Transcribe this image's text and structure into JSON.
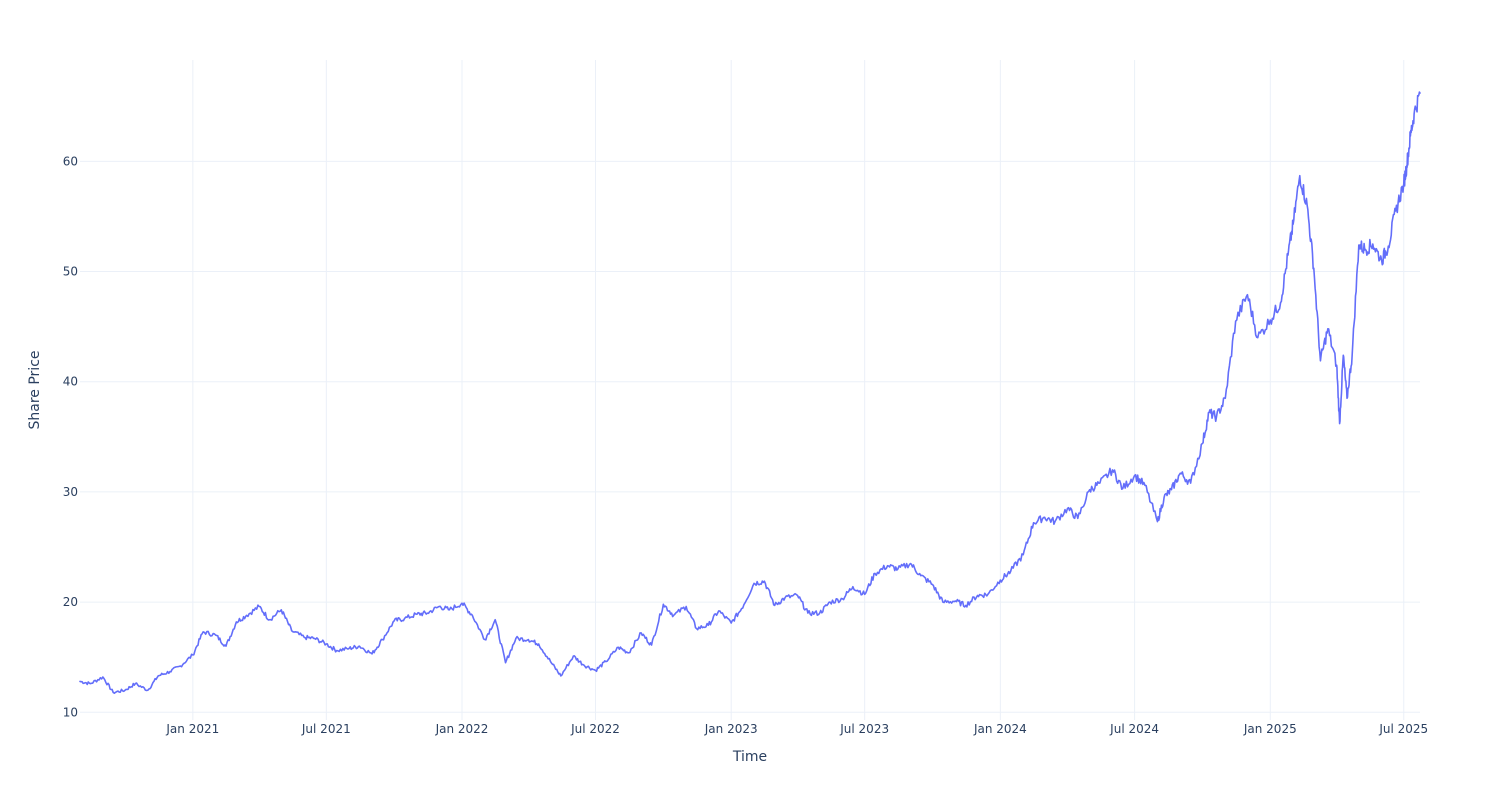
{
  "chart_data": {
    "type": "line",
    "title": "",
    "xlabel": "Time",
    "ylabel": "Share Price",
    "x_range": [
      "2020-08-01",
      "2025-07-23"
    ],
    "ylim": [
      9.3,
      69.2
    ],
    "y_ticks": [
      10,
      20,
      30,
      40,
      50,
      60
    ],
    "x_ticks": [
      {
        "date": "2021-01-01",
        "label": "Jan 2021"
      },
      {
        "date": "2021-07-01",
        "label": "Jul 2021"
      },
      {
        "date": "2022-01-01",
        "label": "Jan 2022"
      },
      {
        "date": "2022-07-01",
        "label": "Jul 2022"
      },
      {
        "date": "2023-01-01",
        "label": "Jan 2023"
      },
      {
        "date": "2023-07-01",
        "label": "Jul 2023"
      },
      {
        "date": "2024-01-01",
        "label": "Jan 2024"
      },
      {
        "date": "2024-07-01",
        "label": "Jul 2024"
      },
      {
        "date": "2025-01-01",
        "label": "Jan 2025"
      },
      {
        "date": "2025-07-01",
        "label": "Jul 2025"
      }
    ],
    "grid": true,
    "legend": "none",
    "colors": {
      "line": "#636efa",
      "grid": "#ebf0f8",
      "text": "#2a3f5f"
    },
    "series": [
      {
        "x": [
          "2020-08-01",
          "2020-08-15",
          "2020-09-01",
          "2020-09-15",
          "2020-10-01",
          "2020-10-15",
          "2020-11-01",
          "2020-11-15",
          "2020-12-01",
          "2020-12-15",
          "2021-01-01",
          "2021-01-15",
          "2021-02-01",
          "2021-02-15",
          "2021-03-01",
          "2021-03-15",
          "2021-04-01",
          "2021-04-15",
          "2021-05-01",
          "2021-05-15",
          "2021-06-01",
          "2021-06-15",
          "2021-07-01",
          "2021-07-15",
          "2021-08-01",
          "2021-08-15",
          "2021-09-01",
          "2021-09-15",
          "2021-10-01",
          "2021-10-15",
          "2021-11-01",
          "2021-11-15",
          "2021-12-01",
          "2021-12-15",
          "2022-01-01",
          "2022-01-15",
          "2022-02-01",
          "2022-02-15",
          "2022-03-01",
          "2022-03-15",
          "2022-04-01",
          "2022-04-15",
          "2022-05-01",
          "2022-05-15",
          "2022-06-01",
          "2022-06-15",
          "2022-07-01",
          "2022-07-15",
          "2022-08-01",
          "2022-08-15",
          "2022-09-01",
          "2022-09-15",
          "2022-10-01",
          "2022-10-15",
          "2022-11-01",
          "2022-11-15",
          "2022-12-01",
          "2022-12-15",
          "2023-01-01",
          "2023-01-15",
          "2023-02-01",
          "2023-02-15",
          "2023-03-01",
          "2023-03-15",
          "2023-04-01",
          "2023-04-15",
          "2023-05-01",
          "2023-05-15",
          "2023-06-01",
          "2023-06-15",
          "2023-07-01",
          "2023-07-15",
          "2023-08-01",
          "2023-08-15",
          "2023-09-01",
          "2023-09-15",
          "2023-10-01",
          "2023-10-15",
          "2023-11-01",
          "2023-11-15",
          "2023-12-01",
          "2023-12-15",
          "2024-01-01",
          "2024-01-15",
          "2024-02-01",
          "2024-02-15",
          "2024-03-01",
          "2024-03-15",
          "2024-04-01",
          "2024-04-15",
          "2024-05-01",
          "2024-05-15",
          "2024-06-01",
          "2024-06-15",
          "2024-07-01",
          "2024-07-15",
          "2024-08-01",
          "2024-08-10",
          "2024-08-20",
          "2024-09-01",
          "2024-09-15",
          "2024-10-01",
          "2024-10-10",
          "2024-10-20",
          "2024-11-01",
          "2024-11-15",
          "2024-12-01",
          "2024-12-15",
          "2025-01-01",
          "2025-01-15",
          "2025-01-25",
          "2025-02-01",
          "2025-02-10",
          "2025-02-20",
          "2025-03-01",
          "2025-03-10",
          "2025-03-20",
          "2025-04-01",
          "2025-04-05",
          "2025-04-10",
          "2025-04-15",
          "2025-04-22",
          "2025-05-01",
          "2025-05-10",
          "2025-05-20",
          "2025-06-01",
          "2025-06-10",
          "2025-06-20",
          "2025-07-01",
          "2025-07-05",
          "2025-07-10",
          "2025-07-15",
          "2025-07-23"
        ],
        "y": [
          12.8,
          12.6,
          13.2,
          11.8,
          12.0,
          12.6,
          12.0,
          13.3,
          13.7,
          14.2,
          15.2,
          17.3,
          17.0,
          16.0,
          18.2,
          18.8,
          19.6,
          18.4,
          19.3,
          17.4,
          16.8,
          16.7,
          16.2,
          15.6,
          15.8,
          16.0,
          15.3,
          16.6,
          18.3,
          18.5,
          18.9,
          19.0,
          19.6,
          19.3,
          19.9,
          18.8,
          16.6,
          18.4,
          14.5,
          16.7,
          16.6,
          16.2,
          14.6,
          13.3,
          15.1,
          14.3,
          13.8,
          14.6,
          15.9,
          15.4,
          17.2,
          16.1,
          19.8,
          18.8,
          19.6,
          17.6,
          17.9,
          19.2,
          18.1,
          19.4,
          21.7,
          21.9,
          19.7,
          20.4,
          20.6,
          19.0,
          19.0,
          20.0,
          20.3,
          21.4,
          20.7,
          22.6,
          23.3,
          23.0,
          23.5,
          22.4,
          21.6,
          20.0,
          20.1,
          19.7,
          20.6,
          20.7,
          22.0,
          22.8,
          24.3,
          27.2,
          27.7,
          27.3,
          28.5,
          27.6,
          30.2,
          30.8,
          32.0,
          30.3,
          31.5,
          30.6,
          27.3,
          29.5,
          30.2,
          31.7,
          30.8,
          34.4,
          37.2,
          36.8,
          38.5,
          45.5,
          47.9,
          44.0,
          45.6,
          47.2,
          51.5,
          54.3,
          58.7,
          56.0,
          50.3,
          41.9,
          44.8,
          41.5,
          36.2,
          42.4,
          38.5,
          42.4,
          52.4,
          52.0,
          52.5,
          51.0,
          52.3,
          55.5,
          58.0,
          59.6,
          62.3,
          64.3,
          66.2
        ]
      }
    ]
  }
}
